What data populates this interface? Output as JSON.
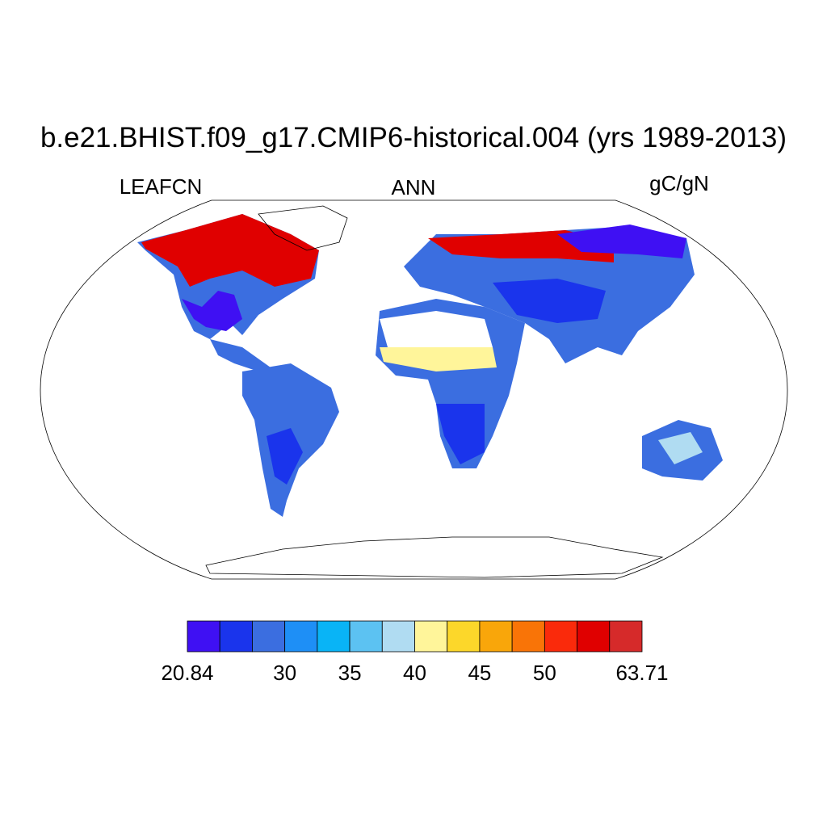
{
  "title": "b.e21.BHIST.f09_g17.CMIP6-historical.004 (yrs 1989-2013)",
  "left_string": "LEAFCN",
  "center_string": "ANN",
  "right_string": "gC/gN",
  "colorbar": {
    "colors": [
      "#3f10f3",
      "#1a34ec",
      "#3b6ee0",
      "#1e8ff6",
      "#09b4f6",
      "#5cc2f2",
      "#b0dcf2",
      "#fff59a",
      "#fcd72a",
      "#f9a60a",
      "#f97407",
      "#fa2a0b",
      "#e00000",
      "#d62a2a"
    ],
    "labels": [
      "20.84",
      null,
      null,
      "30",
      null,
      "35",
      null,
      "40",
      null,
      "45",
      null,
      "50",
      null,
      null,
      "63.71"
    ]
  }
}
